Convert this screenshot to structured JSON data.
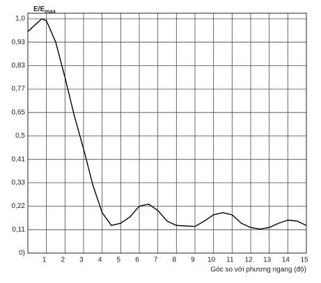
{
  "chart_data": {
    "type": "line",
    "y_label": {
      "main": "E/E",
      "sub": "max"
    },
    "x_label": "Góc so với phương ngang (độ)",
    "x": [
      0,
      0.75,
      1,
      1.5,
      2,
      2.5,
      3,
      3.5,
      4,
      4.5,
      5,
      5.5,
      6,
      6.5,
      7,
      7.5,
      8,
      9,
      9.5,
      10,
      10.5,
      11,
      11.5,
      12,
      12.5,
      13,
      13.5,
      14,
      14.5,
      15
    ],
    "values": [
      0.962,
      1.0,
      0.994,
      0.93,
      0.8,
      0.63,
      0.45,
      0.32,
      0.19,
      0.13,
      0.14,
      0.17,
      0.22,
      0.23,
      0.2,
      0.15,
      0.13,
      0.125,
      0.15,
      0.18,
      0.19,
      0.18,
      0.14,
      0.12,
      0.113,
      0.12,
      0.14,
      0.155,
      0.15,
      0.13
    ],
    "color": "#000000",
    "xlim": [
      0,
      15
    ],
    "xticks": [
      1,
      2,
      3,
      4,
      5,
      6,
      7,
      8,
      9,
      10,
      11,
      12,
      13,
      14,
      15
    ],
    "ylim": [
      0,
      1.0
    ],
    "yticks": [
      {
        "value": 0,
        "label": "0)"
      },
      {
        "value": 0.11,
        "label": "0,11"
      },
      {
        "value": 0.22,
        "label": "0,22"
      },
      {
        "value": 0.33,
        "label": "0,33"
      },
      {
        "value": 0.41,
        "label": "0,41"
      },
      {
        "value": 0.5,
        "label": "0,5"
      },
      {
        "value": 0.65,
        "label": "0,65"
      },
      {
        "value": 0.77,
        "label": "0,77"
      },
      {
        "value": 0.83,
        "label": "0,83"
      },
      {
        "value": 0.93,
        "label": "0,93"
      },
      {
        "value": 1.0,
        "label": "1,0"
      }
    ],
    "grid": true
  }
}
